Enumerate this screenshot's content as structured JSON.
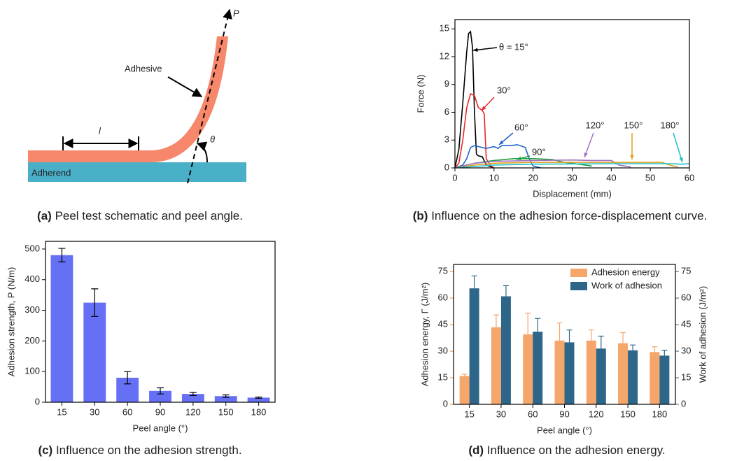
{
  "schematic": {
    "force_label": "P",
    "adhesive_label": "Adhesive",
    "length_label": "l",
    "angle_label": "θ",
    "adherend_label": "Adherend"
  },
  "captions": [
    {
      "label": "(a)",
      "text": "Peel test schematic and peel angle."
    },
    {
      "label": "(b)",
      "text": "Influence on the adhesion force-displacement curve."
    },
    {
      "label": "(c)",
      "text": "Influence on the adhesion strength."
    },
    {
      "label": "(d)",
      "text": "Influence on the adhesion energy."
    }
  ],
  "chart_data": [
    {
      "type": "line",
      "xlabel": "Displacement (mm)",
      "ylabel": "Force (N)",
      "xlim": [
        0,
        60
      ],
      "ylim": [
        0,
        16
      ],
      "xticks": [
        0,
        10,
        20,
        30,
        40,
        50,
        60
      ],
      "yticks": [
        0,
        3,
        6,
        9,
        12,
        15
      ],
      "series": [
        {
          "name": "θ = 15°",
          "color": "#000000",
          "x": [
            0,
            1,
            2,
            3,
            3.5,
            4,
            4.5,
            5,
            5.5,
            6,
            7,
            8,
            10
          ],
          "values": [
            0,
            2,
            7,
            12.5,
            14.5,
            14.7,
            13,
            6,
            1.5,
            1.3,
            1.2,
            0.3,
            0
          ]
        },
        {
          "name": "30°",
          "color": "#e8292b",
          "x": [
            0,
            1,
            2,
            3,
            4,
            5,
            6,
            7,
            7.5,
            8,
            9,
            10
          ],
          "values": [
            0,
            0.5,
            3,
            6.5,
            8,
            7.8,
            6.5,
            6.2,
            5.8,
            1,
            0.3,
            0
          ]
        },
        {
          "name": "60°",
          "color": "#2266cc",
          "x": [
            0,
            2,
            3,
            4,
            5,
            6,
            8,
            10,
            11,
            12,
            14,
            16,
            18,
            19,
            20,
            22
          ],
          "values": [
            0,
            0.3,
            1,
            2.2,
            2.4,
            2.3,
            2.1,
            2.3,
            2.1,
            2.4,
            2.4,
            2.5,
            2.2,
            1,
            0.2,
            0
          ]
        },
        {
          "name": "90°",
          "color": "#22a040",
          "x": [
            0,
            3,
            5,
            10,
            15,
            20,
            25,
            28,
            30,
            35
          ],
          "values": [
            0,
            0.3,
            0.5,
            0.8,
            1,
            1,
            0.9,
            0.6,
            0.5,
            0.2
          ]
        },
        {
          "name": "120°",
          "color": "#a070c0",
          "x": [
            0,
            5,
            10,
            20,
            30,
            35,
            40,
            42,
            45
          ],
          "values": [
            0,
            0.5,
            0.7,
            0.8,
            0.85,
            0.8,
            0.8,
            0.3,
            0.1
          ]
        },
        {
          "name": "150°",
          "color": "#e0a020",
          "x": [
            0,
            5,
            10,
            20,
            30,
            40,
            50,
            53,
            55,
            57
          ],
          "values": [
            0,
            0.3,
            0.5,
            0.6,
            0.6,
            0.6,
            0.6,
            0.6,
            0.3,
            0.1
          ]
        },
        {
          "name": "180°",
          "color": "#20c0c8",
          "x": [
            0,
            10,
            20,
            40,
            55,
            58,
            60
          ],
          "values": [
            0,
            0.3,
            0.4,
            0.45,
            0.45,
            0.4,
            0.45
          ]
        }
      ]
    },
    {
      "type": "bar",
      "xlabel": "Peel angle (°)",
      "ylabel": "Adhesion strength, P (N/m)",
      "categories": [
        "15",
        "30",
        "60",
        "90",
        "120",
        "150",
        "180"
      ],
      "values": [
        480,
        325,
        80,
        37,
        27,
        20,
        15
      ],
      "errors": [
        22,
        45,
        20,
        10,
        5,
        4,
        2
      ],
      "color": "#6670f5",
      "ylim": [
        0,
        525
      ],
      "yticks": [
        0,
        100,
        200,
        300,
        400,
        500
      ]
    },
    {
      "type": "grouped_bar",
      "xlabel": "Peel angle (°)",
      "ylabel": "Adhesion energy, Γ (J/m²)",
      "y2label": "Work of adhesion (J/m²)",
      "categories": [
        "15",
        "30",
        "60",
        "90",
        "120",
        "150",
        "180"
      ],
      "ylim": [
        0,
        79
      ],
      "yticks": [
        0,
        15,
        30,
        45,
        60,
        75
      ],
      "y2lim": [
        0,
        79
      ],
      "y2ticks": [
        0,
        15,
        30,
        45,
        60,
        75
      ],
      "legend": "upper right",
      "series": [
        {
          "name": "Adhesion energy",
          "color": "#f5a66a",
          "values": [
            16,
            43.5,
            39.5,
            36,
            36,
            34.5,
            29.5
          ],
          "errors": [
            1,
            7,
            12,
            10,
            6,
            6,
            3
          ]
        },
        {
          "name": "Work of adhesion",
          "color": "#2d6688",
          "axis": "y2",
          "values": [
            65.5,
            61,
            41,
            35,
            31.5,
            30.5,
            27.5
          ],
          "errors": [
            7,
            6,
            7.5,
            7,
            7,
            3,
            3
          ]
        }
      ]
    }
  ]
}
